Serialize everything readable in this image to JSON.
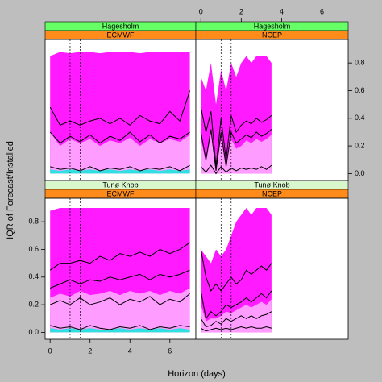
{
  "chart_data": {
    "type": "hexbin",
    "xlabel": "Horizon (days)",
    "ylabel": "IQR of Forecast/Installed",
    "xlim": [
      -0.25,
      7.3
    ],
    "xticks": [
      0,
      2,
      4,
      6
    ],
    "ylim": [
      -0.05,
      0.97
    ],
    "yticks": [
      {
        "value": 0,
        "label": "0.0"
      },
      {
        "value": 0.2,
        "label": "0.2"
      },
      {
        "value": 0.4,
        "label": "0.4"
      },
      {
        "value": 0.6,
        "label": "0.6"
      },
      {
        "value": 0.8,
        "label": "0.8"
      }
    ],
    "vlines": [
      1,
      1.5
    ],
    "panels": [
      {
        "site": "Hagesholm",
        "model": "ECMWF",
        "x": [
          0,
          0.5,
          1,
          1.5,
          2,
          2.5,
          3,
          3.5,
          4,
          4.5,
          5,
          5.5,
          6,
          6.5,
          7
        ],
        "series": [
          {
            "kind": "area",
            "color": "#ff1aff",
            "values": [
              0.85,
              0.88,
              0.87,
              0.88,
              0.88,
              0.87,
              0.88,
              0.88,
              0.88,
              0.87,
              0.88,
              0.88,
              0.88,
              0.88,
              0.88
            ]
          },
          {
            "kind": "area",
            "color": "#ff9cff",
            "values": [
              0.3,
              0.2,
              0.25,
              0.22,
              0.25,
              0.2,
              0.24,
              0.22,
              0.26,
              0.2,
              0.25,
              0.22,
              0.25,
              0.23,
              0.28
            ]
          },
          {
            "kind": "area",
            "color": "#30e0e0",
            "values": [
              0.03,
              0.02,
              0.03,
              0.02,
              0.03,
              0.02,
              0.03,
              0.02,
              0.03,
              0.02,
              0.03,
              0.02,
              0.03,
              0.02,
              0.03
            ]
          },
          {
            "kind": "line",
            "color": "#000000",
            "values": [
              0.48,
              0.35,
              0.38,
              0.35,
              0.38,
              0.4,
              0.36,
              0.4,
              0.35,
              0.42,
              0.38,
              0.36,
              0.45,
              0.38,
              0.6
            ]
          },
          {
            "kind": "line",
            "color": "#000000",
            "values": [
              0.3,
              0.22,
              0.27,
              0.23,
              0.28,
              0.22,
              0.27,
              0.24,
              0.3,
              0.23,
              0.28,
              0.22,
              0.27,
              0.25,
              0.3
            ]
          },
          {
            "kind": "line",
            "color": "#000000",
            "values": [
              0.05,
              0.03,
              0.04,
              0.02,
              0.05,
              0.02,
              0.04,
              0.03,
              0.05,
              0.02,
              0.04,
              0.03,
              0.05,
              0.02,
              0.06
            ]
          }
        ]
      },
      {
        "site": "Hagesholm",
        "model": "NCEP",
        "x": [
          0,
          0.25,
          0.5,
          0.75,
          1,
          1.25,
          1.5,
          1.75,
          2,
          2.25,
          2.5,
          2.75,
          3,
          3.25,
          3.5
        ],
        "series": [
          {
            "kind": "area",
            "color": "#ff1aff",
            "values": [
              0.7,
              0.6,
              0.8,
              0.5,
              0.75,
              0.6,
              0.8,
              0.7,
              0.8,
              0.85,
              0.8,
              0.85,
              0.85,
              0.85,
              0.8
            ]
          },
          {
            "kind": "area",
            "color": "#ff9cff",
            "values": [
              0.25,
              0.08,
              0.28,
              0.03,
              0.25,
              0.05,
              0.25,
              0.18,
              0.2,
              0.24,
              0.22,
              0.25,
              0.23,
              0.25,
              0.28
            ]
          },
          {
            "kind": "line",
            "color": "#000000",
            "values": [
              0.48,
              0.3,
              0.45,
              0.05,
              0.4,
              0.1,
              0.42,
              0.3,
              0.35,
              0.38,
              0.36,
              0.4,
              0.37,
              0.39,
              0.42
            ]
          },
          {
            "kind": "line",
            "color": "#000000",
            "values": [
              0.3,
              0.1,
              0.32,
              0.02,
              0.3,
              0.05,
              0.3,
              0.22,
              0.25,
              0.28,
              0.26,
              0.3,
              0.27,
              0.29,
              0.32
            ]
          },
          {
            "kind": "line",
            "color": "#000000",
            "values": [
              0.05,
              0.01,
              0.06,
              0,
              0.05,
              0.01,
              0.04,
              0.02,
              0.04,
              0.03,
              0.04,
              0.03,
              0.05,
              0.03,
              0.06
            ]
          }
        ]
      },
      {
        "site": "Tunø Knob",
        "model": "ECMWF",
        "x": [
          0,
          0.5,
          1,
          1.5,
          2,
          2.5,
          3,
          3.5,
          4,
          4.5,
          5,
          5.5,
          6,
          6.5,
          7
        ],
        "series": [
          {
            "kind": "area",
            "color": "#ff1aff",
            "values": [
              0.88,
              0.9,
              0.9,
              0.9,
              0.9,
              0.9,
              0.9,
              0.9,
              0.9,
              0.9,
              0.9,
              0.9,
              0.9,
              0.9,
              0.9
            ]
          },
          {
            "kind": "area",
            "color": "#ff9cff",
            "values": [
              0.25,
              0.28,
              0.26,
              0.3,
              0.27,
              0.28,
              0.3,
              0.27,
              0.3,
              0.28,
              0.3,
              0.27,
              0.3,
              0.28,
              0.32
            ]
          },
          {
            "kind": "area",
            "color": "#30e0e0",
            "values": [
              0.03,
              0.02,
              0.03,
              0.02,
              0.03,
              0.02,
              0.02,
              0.03,
              0.02,
              0.03,
              0.02,
              0.03,
              0.02,
              0.03,
              0.02
            ]
          },
          {
            "kind": "line",
            "color": "#000000",
            "values": [
              0.45,
              0.5,
              0.5,
              0.52,
              0.5,
              0.55,
              0.52,
              0.57,
              0.55,
              0.58,
              0.55,
              0.6,
              0.57,
              0.6,
              0.65
            ]
          },
          {
            "kind": "line",
            "color": "#000000",
            "values": [
              0.32,
              0.35,
              0.38,
              0.35,
              0.38,
              0.37,
              0.4,
              0.38,
              0.4,
              0.42,
              0.38,
              0.42,
              0.4,
              0.42,
              0.45
            ]
          },
          {
            "kind": "line",
            "color": "#000000",
            "values": [
              0.2,
              0.23,
              0.2,
              0.25,
              0.2,
              0.22,
              0.25,
              0.2,
              0.24,
              0.22,
              0.26,
              0.2,
              0.24,
              0.22,
              0.28
            ]
          },
          {
            "kind": "line",
            "color": "#000000",
            "values": [
              0.05,
              0.03,
              0.04,
              0.02,
              0.05,
              0.03,
              0.02,
              0.04,
              0.03,
              0.05,
              0.02,
              0.04,
              0.03,
              0.05,
              0.04
            ]
          }
        ]
      },
      {
        "site": "Tunø Knob",
        "model": "NCEP",
        "x": [
          0,
          0.25,
          0.5,
          0.75,
          1,
          1.25,
          1.5,
          1.75,
          2,
          2.25,
          2.5,
          2.75,
          3,
          3.25,
          3.5
        ],
        "series": [
          {
            "kind": "area",
            "color": "#ff1aff",
            "values": [
              0.6,
              0.55,
              0.5,
              0.6,
              0.55,
              0.6,
              0.7,
              0.8,
              0.85,
              0.9,
              0.85,
              0.9,
              0.9,
              0.9,
              0.85
            ]
          },
          {
            "kind": "area",
            "color": "#ff9cff",
            "values": [
              0.2,
              0.08,
              0.1,
              0.1,
              0.12,
              0.15,
              0.14,
              0.16,
              0.18,
              0.2,
              0.18,
              0.2,
              0.22,
              0.2,
              0.24
            ]
          },
          {
            "kind": "line",
            "color": "#000000",
            "values": [
              0.6,
              0.4,
              0.3,
              0.35,
              0.3,
              0.35,
              0.4,
              0.35,
              0.38,
              0.45,
              0.42,
              0.45,
              0.48,
              0.45,
              0.5
            ]
          },
          {
            "kind": "line",
            "color": "#000000",
            "values": [
              0.3,
              0.1,
              0.15,
              0.12,
              0.15,
              0.2,
              0.18,
              0.2,
              0.22,
              0.25,
              0.22,
              0.25,
              0.28,
              0.25,
              0.3
            ]
          },
          {
            "kind": "line",
            "color": "#000000",
            "values": [
              0.1,
              0.04,
              0.05,
              0.08,
              0.06,
              0.1,
              0.08,
              0.1,
              0.12,
              0.1,
              0.12,
              0.1,
              0.12,
              0.13,
              0.15
            ]
          },
          {
            "kind": "line",
            "color": "#000000",
            "values": [
              0.03,
              0.01,
              0.02,
              0.03,
              0.02,
              0.03,
              0.02,
              0.03,
              0.04,
              0.03,
              0.04,
              0.03,
              0.03,
              0.04,
              0.03
            ]
          }
        ]
      }
    ]
  }
}
